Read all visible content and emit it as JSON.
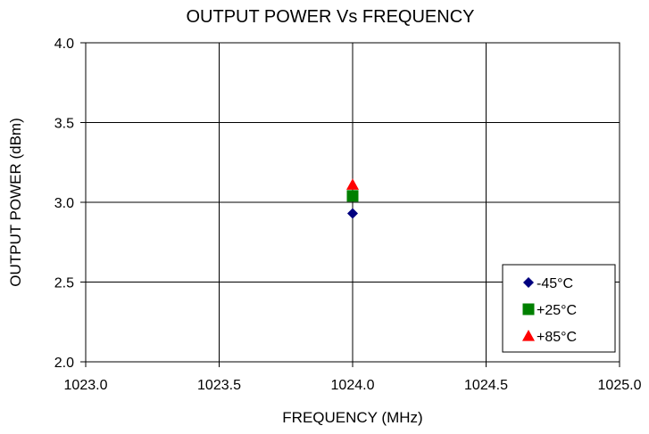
{
  "chart_data": {
    "type": "scatter",
    "title": "OUTPUT POWER Vs FREQUENCY",
    "xlabel": "FREQUENCY (MHz)",
    "ylabel": "OUTPUT POWER (dBm)",
    "xlim": [
      1023.0,
      1025.0
    ],
    "ylim": [
      2.0,
      4.0
    ],
    "xticks": [
      "1023.0",
      "1023.5",
      "1024.0",
      "1024.5",
      "1025.0"
    ],
    "yticks": [
      "2.0",
      "2.5",
      "3.0",
      "3.5",
      "4.0"
    ],
    "grid": true,
    "legend_position": "bottom-right",
    "series": [
      {
        "name": "-45°C",
        "marker": "diamond",
        "color": "#000080",
        "points": [
          {
            "x": 1024.0,
            "y": 2.93
          }
        ]
      },
      {
        "name": "+25°C",
        "marker": "square",
        "color": "#008000",
        "points": [
          {
            "x": 1024.0,
            "y": 3.04
          }
        ]
      },
      {
        "name": "+85°C",
        "marker": "triangle",
        "color": "#ff0000",
        "points": [
          {
            "x": 1024.0,
            "y": 3.11
          }
        ]
      }
    ]
  }
}
